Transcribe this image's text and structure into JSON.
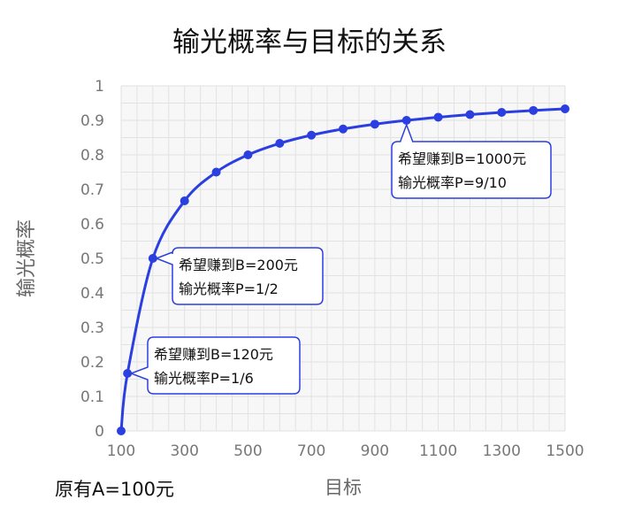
{
  "chart_data": {
    "type": "line",
    "title": "输光概率与目标的关系",
    "xlabel": "目标",
    "ylabel": "输光概率",
    "xlim": [
      100,
      1500
    ],
    "ylim": [
      0,
      1
    ],
    "grid": true,
    "x_ticks": [
      "100",
      "300",
      "500",
      "700",
      "900",
      "1100",
      "1300",
      "1500"
    ],
    "y_ticks": [
      "0",
      "0.1",
      "0.2",
      "0.3",
      "0.4",
      "0.5",
      "0.6",
      "0.7",
      "0.8",
      "0.9",
      "1"
    ],
    "series": [
      {
        "color": "#2b3fe0",
        "x": [
          100,
          120,
          200,
          300,
          400,
          500,
          600,
          700,
          800,
          900,
          1000,
          1100,
          1200,
          1300,
          1400,
          1500
        ],
        "y": [
          0,
          0.1667,
          0.5,
          0.6667,
          0.75,
          0.8,
          0.8333,
          0.8571,
          0.875,
          0.8889,
          0.9,
          0.9091,
          0.9167,
          0.9231,
          0.9286,
          0.9333
        ]
      }
    ],
    "annotations": [
      {
        "x": 120,
        "y": 0.1667,
        "lines": [
          "希望赚到B=120元",
          "输光概率P=1/6"
        ]
      },
      {
        "x": 200,
        "y": 0.5,
        "lines": [
          "希望赚到B=200元",
          "输光概率P=1/2"
        ]
      },
      {
        "x": 1000,
        "y": 0.9,
        "lines": [
          "希望赚到B=1000元",
          "输光概率P=9/10"
        ]
      }
    ],
    "footnote": "原有A=100元"
  }
}
